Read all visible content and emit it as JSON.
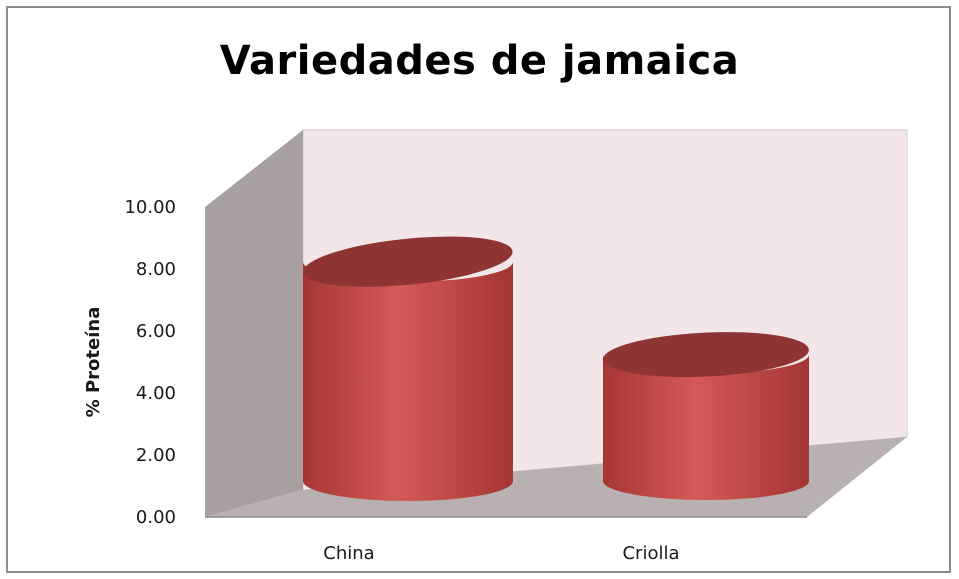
{
  "chart_data": {
    "type": "bar",
    "title": "Variedades de jamaica",
    "xlabel": "",
    "ylabel": "%  Proteína",
    "categories": [
      "China",
      "Criolla"
    ],
    "values": [
      8.5,
      4.9
    ],
    "ylim": [
      0,
      10
    ],
    "yticks": [
      "0.00",
      "2.00",
      "4.00",
      "6.00",
      "8.00",
      "10.00"
    ],
    "bar_shape": "cylinder",
    "grid": false,
    "legend": "none",
    "colors": {
      "bar_body": "#c94a48",
      "bar_top": "#8e3533",
      "back_wall": "#f3e6e8",
      "side_wall": "#a9a0a1",
      "floor": "#b9b0b1"
    }
  }
}
